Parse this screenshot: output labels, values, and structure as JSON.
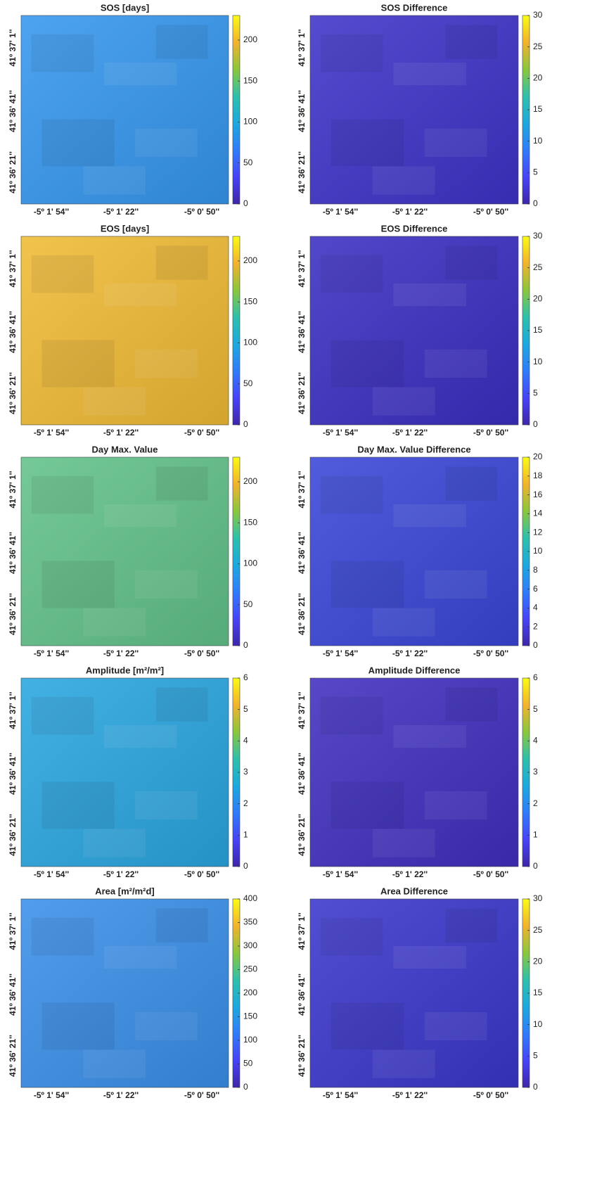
{
  "colormap": [
    "#3e26a8",
    "#4743f8",
    "#2f7cfa",
    "#1ca9df",
    "#2ec0ac",
    "#8bc73c",
    "#f3b22e",
    "#f9fb15"
  ],
  "chart_data": [
    {
      "type": "heatmap",
      "title": "SOS [days]",
      "image_color": "#3597ee",
      "xtick_labels": [
        "-5º 1' 54''",
        "-5º 1' 22''",
        "-5º 0' 50''"
      ],
      "ytick_labels": [
        "41º 37' 1''",
        "41º 36' 41''",
        "41º 36' 21''"
      ],
      "clim": [
        0,
        230
      ],
      "cticks": [
        0,
        50,
        100,
        150,
        200
      ]
    },
    {
      "type": "heatmap",
      "title": "SOS Difference",
      "image_color": "#3d33c9",
      "xtick_labels": [
        "-5º 1' 54''",
        "-5º 1' 22''",
        "-5º 0' 50''"
      ],
      "ytick_labels": [
        "41º 37' 1''",
        "41º 36' 41''",
        "41º 36' 21''"
      ],
      "clim": [
        0,
        30
      ],
      "cticks": [
        0,
        5,
        10,
        15,
        20,
        25,
        30
      ]
    },
    {
      "type": "heatmap",
      "title": "EOS [days]",
      "image_color": "#f0bb35",
      "xtick_labels": [
        "-5º 1' 54''",
        "-5º 1' 22''",
        "-5º 0' 50''"
      ],
      "ytick_labels": [
        "41º 37' 1''",
        "41º 36' 41''",
        "41º 36' 21''"
      ],
      "clim": [
        0,
        230
      ],
      "cticks": [
        0,
        50,
        100,
        150,
        200
      ]
    },
    {
      "type": "heatmap",
      "title": "EOS Difference",
      "image_color": "#3b2ec2",
      "xtick_labels": [
        "-5º 1' 54''",
        "-5º 1' 22''",
        "-5º 0' 50''"
      ],
      "ytick_labels": [
        "41º 37' 1''",
        "41º 36' 41''",
        "41º 36' 21''"
      ],
      "clim": [
        0,
        30
      ],
      "cticks": [
        0,
        5,
        10,
        15,
        20,
        25,
        30
      ]
    },
    {
      "type": "heatmap",
      "title": "Day Max. Value",
      "image_color": "#62c28a",
      "xtick_labels": [
        "-5º 1' 54''",
        "-5º 1' 22''",
        "-5º 0' 50''"
      ],
      "ytick_labels": [
        "41º 37' 1''",
        "41º 36' 41''",
        "41º 36' 21''"
      ],
      "clim": [
        0,
        230
      ],
      "cticks": [
        0,
        50,
        100,
        150,
        200
      ]
    },
    {
      "type": "heatmap",
      "title": "Day Max. Value Difference",
      "image_color": "#3946d8",
      "xtick_labels": [
        "-5º 1' 54''",
        "-5º 1' 22''",
        "-5º 0' 50''"
      ],
      "ytick_labels": [
        "41º 37' 1''",
        "41º 36' 41''",
        "41º 36' 21''"
      ],
      "clim": [
        0,
        20
      ],
      "cticks": [
        0,
        2,
        4,
        6,
        8,
        10,
        12,
        14,
        16,
        18,
        20
      ]
    },
    {
      "type": "heatmap",
      "title": "Amplitude [m²/m²]",
      "image_color": "#2aa6e0",
      "xtick_labels": [
        "-5º 1' 54''",
        "-5º 1' 22''",
        "-5º 0' 50''"
      ],
      "ytick_labels": [
        "41º 37' 1''",
        "41º 36' 41''",
        "41º 36' 21''"
      ],
      "clim": [
        0,
        6
      ],
      "cticks": [
        0,
        1,
        2,
        3,
        4,
        5,
        6
      ]
    },
    {
      "type": "heatmap",
      "title": "Amplitude Difference",
      "image_color": "#3f2fbf",
      "xtick_labels": [
        "-5º 1' 54''",
        "-5º 1' 22''",
        "-5º 0' 50''"
      ],
      "ytick_labels": [
        "41º 37' 1''",
        "41º 36' 41''",
        "41º 36' 21''"
      ],
      "clim": [
        0,
        6
      ],
      "cticks": [
        0,
        1,
        2,
        3,
        4,
        5,
        6
      ]
    },
    {
      "type": "heatmap",
      "title": "Area  [m²/m²d]",
      "image_color": "#3a8fe9",
      "xtick_labels": [
        "-5º 1' 54''",
        "-5º 1' 22''",
        "-5º 0' 50''"
      ],
      "ytick_labels": [
        "41º 37' 1''",
        "41º 36' 41''",
        "41º 36' 21''"
      ],
      "clim": [
        0,
        400
      ],
      "cticks": [
        0,
        50,
        100,
        150,
        200,
        250,
        300,
        350,
        400
      ]
    },
    {
      "type": "heatmap",
      "title": "Area Difference",
      "image_color": "#3b36cc",
      "xtick_labels": [
        "-5º 1' 54''",
        "-5º 1' 22''",
        "-5º 0' 50''"
      ],
      "ytick_labels": [
        "41º 37' 1''",
        "41º 36' 41''",
        "41º 36' 21''"
      ],
      "clim": [
        0,
        30
      ],
      "cticks": [
        0,
        5,
        10,
        15,
        20,
        25,
        30
      ]
    }
  ]
}
